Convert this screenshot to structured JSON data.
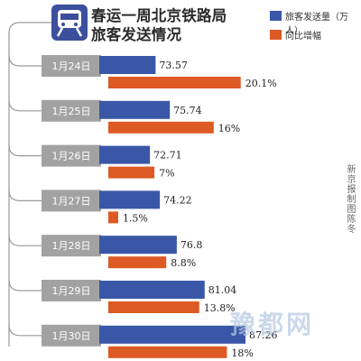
{
  "title_line1": "春运一周北京铁路局",
  "title_line2": "旅客发送情况",
  "icon": "train-icon",
  "colors": {
    "passengers": "#3a57a7",
    "growth": "#dd5a24",
    "date_tab": "#a2a2a2",
    "connector": "#9a9a9a",
    "icon_bg": "#3c4f9c"
  },
  "legend": [
    {
      "label": "旅客发送量（万人）"
    },
    {
      "label": "同比增幅"
    }
  ],
  "credit": "新京报制图陈冬",
  "watermark": "豫都网",
  "chart_data": {
    "type": "bar",
    "orientation": "horizontal",
    "categories": [
      "1月24日",
      "1月25日",
      "1月26日",
      "1月27日",
      "1月28日",
      "1月29日",
      "1月30日"
    ],
    "series": [
      {
        "name": "旅客发送量（万人）",
        "values": [
          73.57,
          75.74,
          72.71,
          74.22,
          76.8,
          81.04,
          87.26
        ],
        "labels": [
          "73.57",
          "75.74",
          "72.71",
          "74.22",
          "76.8",
          "81.04",
          "87.26"
        ]
      },
      {
        "name": "同比增幅",
        "values": [
          20.1,
          16,
          7,
          1.5,
          8.8,
          13.8,
          18
        ],
        "labels": [
          "20.1%",
          "16%",
          "7%",
          "1.5%",
          "8.8%",
          "13.8%",
          "18%"
        ]
      }
    ]
  }
}
